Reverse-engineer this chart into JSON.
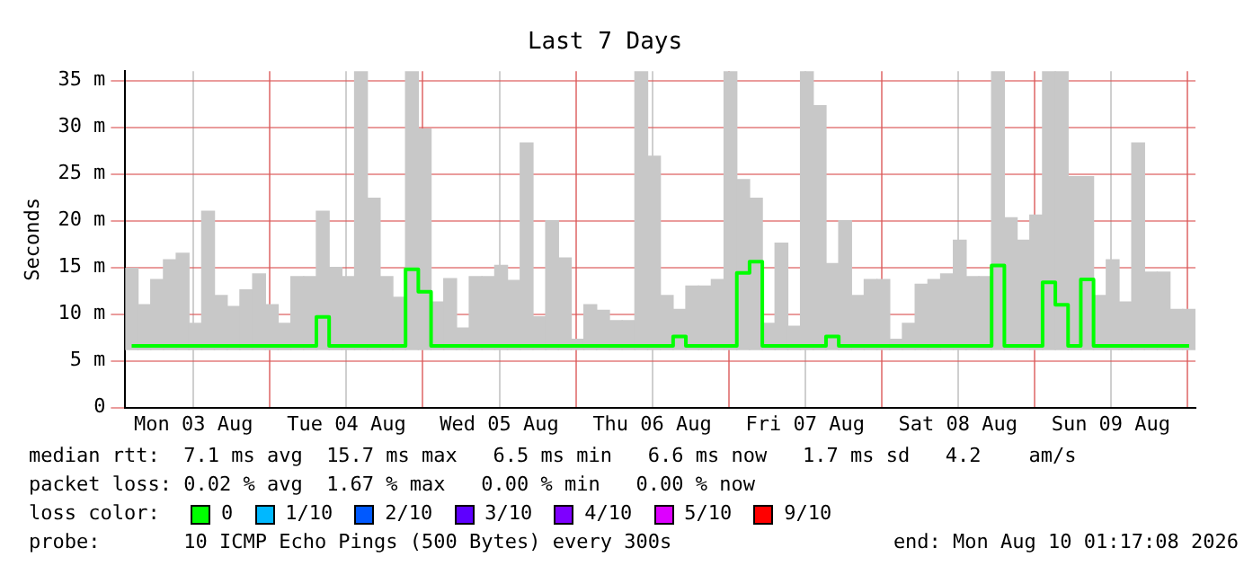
{
  "chart_data": {
    "type": "bar",
    "title": "Last 7 Days",
    "ylabel": "Seconds",
    "x": [
      "2026-08-03T02:17",
      "2026-08-03T04:17",
      "2026-08-03T06:17",
      "2026-08-03T08:17",
      "2026-08-03T10:17",
      "2026-08-03T12:17",
      "2026-08-03T14:17",
      "2026-08-03T16:17",
      "2026-08-03T18:17",
      "2026-08-03T20:17",
      "2026-08-03T22:17",
      "2026-08-04T00:17",
      "2026-08-04T02:17",
      "2026-08-04T04:17",
      "2026-08-04T06:17",
      "2026-08-04T08:17",
      "2026-08-04T10:17",
      "2026-08-04T12:17",
      "2026-08-04T14:17",
      "2026-08-04T16:17",
      "2026-08-04T18:17",
      "2026-08-04T20:17",
      "2026-08-04T22:17",
      "2026-08-05T00:17",
      "2026-08-05T02:17",
      "2026-08-05T04:17",
      "2026-08-05T06:17",
      "2026-08-05T08:17",
      "2026-08-05T10:17",
      "2026-08-05T12:17",
      "2026-08-05T14:17",
      "2026-08-05T16:17",
      "2026-08-05T18:17",
      "2026-08-05T20:17",
      "2026-08-05T22:17",
      "2026-08-06T00:17",
      "2026-08-06T02:17",
      "2026-08-06T04:17",
      "2026-08-06T06:17",
      "2026-08-06T08:17",
      "2026-08-06T10:17",
      "2026-08-06T12:17",
      "2026-08-06T14:17",
      "2026-08-06T16:17",
      "2026-08-06T18:17",
      "2026-08-06T20:17",
      "2026-08-06T22:17",
      "2026-08-07T00:17",
      "2026-08-07T02:17",
      "2026-08-07T04:17",
      "2026-08-07T06:17",
      "2026-08-07T08:17",
      "2026-08-07T10:17",
      "2026-08-07T12:17",
      "2026-08-07T14:17",
      "2026-08-07T16:17",
      "2026-08-07T18:17",
      "2026-08-07T20:17",
      "2026-08-07T22:17",
      "2026-08-08T00:17",
      "2026-08-08T02:17",
      "2026-08-08T04:17",
      "2026-08-08T06:17",
      "2026-08-08T08:17",
      "2026-08-08T10:17",
      "2026-08-08T12:17",
      "2026-08-08T14:17",
      "2026-08-08T16:17",
      "2026-08-08T18:17",
      "2026-08-08T20:17",
      "2026-08-08T22:17",
      "2026-08-09T00:17",
      "2026-08-09T02:17",
      "2026-08-09T04:17",
      "2026-08-09T06:17",
      "2026-08-09T08:17",
      "2026-08-09T10:17",
      "2026-08-09T12:17",
      "2026-08-09T14:17",
      "2026-08-09T16:17",
      "2026-08-09T18:17",
      "2026-08-09T20:17",
      "2026-08-09T22:17",
      "2026-08-10T00:17"
    ],
    "series": [
      {
        "color": "#c8c8c8",
        "base": [
          6.2,
          6.2,
          6.2,
          6.2,
          6.2,
          6.2,
          6.2,
          6.2,
          6.2,
          6.2,
          6.2,
          6.2,
          6.2,
          6.2,
          6.2,
          6.2,
          6.2,
          6.2,
          6.2,
          6.2,
          6.2,
          6.2,
          6.2,
          6.2,
          6.2,
          6.2,
          6.2,
          6.2,
          6.2,
          6.2,
          6.2,
          6.2,
          6.2,
          6.2,
          6.2,
          6.2,
          6.2,
          6.2,
          6.2,
          6.2,
          6.2,
          6.2,
          6.2,
          6.2,
          6.2,
          6.2,
          6.2,
          6.2,
          6.2,
          6.2,
          6.2,
          6.2,
          6.2,
          6.2,
          6.2,
          6.2,
          6.2,
          6.2,
          6.2,
          6.2,
          6.2,
          6.2,
          6.2,
          6.2,
          6.2,
          6.2,
          6.2,
          6.2,
          6.2,
          6.2,
          6.2,
          6.2,
          6.2,
          6.2,
          6.2,
          6.2,
          6.2,
          6.2,
          6.2,
          6.2,
          6.2,
          6.2,
          6.2,
          6.2
        ],
        "values": [
          8.7,
          4.8,
          7.5,
          9.6,
          10.3,
          2.8,
          14.8,
          5.8,
          4.6,
          6.4,
          8.1,
          4.8,
          2.8,
          7.8,
          7.8,
          14.8,
          8.8,
          7.8,
          29.8,
          16.2,
          7.8,
          5.6,
          29.8,
          23.6,
          5.1,
          7.6,
          2.3,
          7.8,
          7.8,
          9,
          7.4,
          22.1,
          3.5,
          13.8,
          9.8,
          1.1,
          4.8,
          4.2,
          3.1,
          3.1,
          29.8,
          20.7,
          5.8,
          4.3,
          6.8,
          6.8,
          7.5,
          29.8,
          18.2,
          16.2,
          2.8,
          11.4,
          2.5,
          29.8,
          26.1,
          9.2,
          13.8,
          5.8,
          7.5,
          7.5,
          1.1,
          2.8,
          7,
          7.5,
          8.1,
          11.7,
          7.8,
          7.8,
          29.8,
          14.1,
          11.7,
          14.4,
          29.8,
          29.8,
          18.5,
          18.5,
          5.8,
          9.6,
          5.1,
          22.1,
          8.3,
          8.3,
          4.3,
          4.3
        ]
      },
      {
        "type": "step",
        "color": "#00ff00",
        "values": [
          6.6,
          6.6,
          6.6,
          6.6,
          6.6,
          6.6,
          6.6,
          6.6,
          6.6,
          6.6,
          6.6,
          6.6,
          6.6,
          6.6,
          6.6,
          9.7,
          6.6,
          6.6,
          6.6,
          6.6,
          6.6,
          6.6,
          14.8,
          12.4,
          6.6,
          6.6,
          6.6,
          6.6,
          6.6,
          6.6,
          6.6,
          6.6,
          6.6,
          6.6,
          6.6,
          6.6,
          6.6,
          6.6,
          6.6,
          6.6,
          6.6,
          6.6,
          6.6,
          7.6,
          6.6,
          6.6,
          6.6,
          6.6,
          14.4,
          15.6,
          6.6,
          6.6,
          6.6,
          6.6,
          6.6,
          7.6,
          6.6,
          6.6,
          6.6,
          6.6,
          6.6,
          6.6,
          6.6,
          6.6,
          6.6,
          6.6,
          6.6,
          6.6,
          15.2,
          6.6,
          6.6,
          6.6,
          13.4,
          11,
          6.6,
          13.7,
          6.6,
          6.6,
          6.6,
          6.6,
          6.6,
          6.6,
          6.6,
          6.6
        ]
      }
    ],
    "xlim": [
      "2026-08-03T01:17",
      "2026-08-10T01:17"
    ],
    "xticks": [
      {
        "value": "2026-08-03T12:00",
        "label": "Mon 03 Aug"
      },
      {
        "value": "2026-08-04T00:00",
        "label": null
      },
      {
        "value": "2026-08-04T12:00",
        "label": "Tue 04 Aug"
      },
      {
        "value": "2026-08-05T00:00",
        "label": null
      },
      {
        "value": "2026-08-05T12:00",
        "label": "Wed 05 Aug"
      },
      {
        "value": "2026-08-06T00:00",
        "label": null
      },
      {
        "value": "2026-08-06T12:00",
        "label": "Thu 06 Aug"
      },
      {
        "value": "2026-08-07T00:00",
        "label": null
      },
      {
        "value": "2026-08-07T12:00",
        "label": "Fri 07 Aug"
      },
      {
        "value": "2026-08-08T00:00",
        "label": null
      },
      {
        "value": "2026-08-08T12:00",
        "label": "Sat 08 Aug"
      },
      {
        "value": "2026-08-09T00:00",
        "label": null
      },
      {
        "value": "2026-08-09T12:00",
        "label": "Sun 09 Aug"
      },
      {
        "value": "2026-08-10T00:00",
        "label": null
      }
    ],
    "ylim": [
      0,
      36
    ],
    "yticks": [
      0,
      {
        "value": 5,
        "label": "5 m"
      },
      {
        "value": 10,
        "label": "10 m"
      },
      {
        "value": 15,
        "label": "15 m"
      },
      {
        "value": 20,
        "label": "20 m"
      },
      {
        "value": 25,
        "label": "25 m"
      },
      {
        "value": 30,
        "label": "30 m"
      },
      {
        "value": 35,
        "label": "35 m"
      }
    ],
    "grid": true,
    "annotations": [
      "median rtt:  7.1 ms avg  15.7 ms max   6.5 ms min   6.6 ms now   1.7 ms sd   4.2    am/s",
      "packet loss: 0.02 % avg  1.67 % max   0.00 % min   0.00 % now",
      "loss color:",
      "0",
      "1/10",
      "2/10",
      "3/10",
      "4/10",
      "5/10",
      "9/10",
      "probe:       10 ICMP Echo Pings (500 Bytes) every 300s",
      "end: Mon Aug 10 01:17:08 2026"
    ]
  }
}
